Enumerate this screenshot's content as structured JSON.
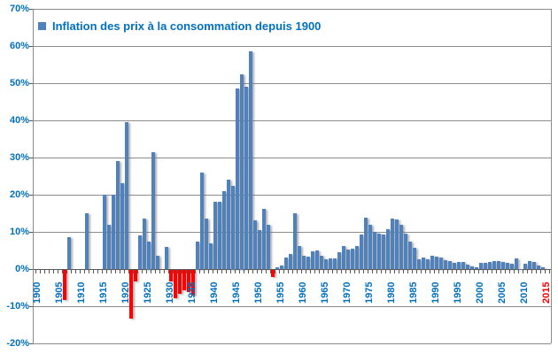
{
  "legend": {
    "label": "Inflation des prix à la consommation depuis 1900",
    "swatch_color": "#4f81bd"
  },
  "colors": {
    "positive_bar": "#4f81bd",
    "negative_bar": "#ff0000",
    "axis_text": "#0070c0",
    "last_xlabel": "#ff0000",
    "gridline": "#8c8c8c"
  },
  "y_axis": {
    "tick_labels": [
      "70%",
      "60%",
      "50%",
      "40%",
      "30%",
      "20%",
      "10%",
      "0%",
      "-10%",
      "-20%"
    ],
    "tick_values": [
      70,
      60,
      50,
      40,
      30,
      20,
      10,
      0,
      -10,
      -20
    ]
  },
  "x_axis": {
    "tick_labels": [
      "1900",
      "1905",
      "1910",
      "1915",
      "1920",
      "1925",
      "1930",
      "1935",
      "1940",
      "1945",
      "1950",
      "1955",
      "1960",
      "1965",
      "1970",
      "1975",
      "1980",
      "1985",
      "1990",
      "1995",
      "2000",
      "2005",
      "2010",
      "2015"
    ],
    "last_label_color": "#ff0000"
  },
  "chart_data": {
    "type": "bar",
    "title": "Inflation des prix à la consommation depuis 1900",
    "xlabel": "",
    "ylabel": "",
    "ylim": [
      -20,
      70
    ],
    "grid": "horizontal-only",
    "legend_position": "top-left-inside",
    "positive_color": "#4f81bd",
    "negative_color": "#ff0000",
    "x_start_year": 1900,
    "x_end_year": 2015,
    "years": [
      1900,
      1901,
      1902,
      1903,
      1904,
      1905,
      1906,
      1907,
      1908,
      1909,
      1910,
      1911,
      1912,
      1913,
      1914,
      1915,
      1916,
      1917,
      1918,
      1919,
      1920,
      1921,
      1922,
      1923,
      1924,
      1925,
      1926,
      1927,
      1928,
      1929,
      1930,
      1931,
      1932,
      1933,
      1934,
      1935,
      1936,
      1937,
      1938,
      1939,
      1940,
      1941,
      1942,
      1943,
      1944,
      1945,
      1946,
      1947,
      1948,
      1949,
      1950,
      1951,
      1952,
      1953,
      1954,
      1955,
      1956,
      1957,
      1958,
      1959,
      1960,
      1961,
      1962,
      1963,
      1964,
      1965,
      1966,
      1967,
      1968,
      1969,
      1970,
      1971,
      1972,
      1973,
      1974,
      1975,
      1976,
      1977,
      1978,
      1979,
      1980,
      1981,
      1982,
      1983,
      1984,
      1985,
      1986,
      1987,
      1988,
      1989,
      1990,
      1991,
      1992,
      1993,
      1994,
      1995,
      1996,
      1997,
      1998,
      1999,
      2000,
      2001,
      2002,
      2003,
      2004,
      2005,
      2006,
      2007,
      2008,
      2009,
      2010,
      2011,
      2012,
      2013,
      2014,
      2015
    ],
    "values": [
      0,
      0,
      0,
      0,
      0,
      0,
      -8,
      8.5,
      0,
      0,
      0,
      15,
      0,
      0,
      0,
      20,
      12,
      20,
      29,
      23,
      39.5,
      -13.2,
      -3,
      9,
      13.5,
      7.5,
      31.5,
      3.5,
      0,
      6,
      -3,
      -7.5,
      -6.5,
      -5.5,
      -6,
      -7,
      7.5,
      26,
      13.5,
      7,
      18,
      18,
      21,
      24,
      22.5,
      48.5,
      52.5,
      49,
      58.5,
      13.2,
      10.5,
      16.3,
      11.8,
      -1.8,
      0.5,
      1,
      3,
      4,
      15.1,
      6.3,
      3.6,
      3.4,
      4.7,
      4.9,
      3.5,
      2.6,
      2.8,
      2.8,
      4.5,
      6.1,
      5.3,
      5.5,
      6.2,
      9.2,
      13.7,
      12,
      9.9,
      9.5,
      9.2,
      10.8,
      13.6,
      13.4,
      11.8,
      9.6,
      7.4,
      5.8,
      2.7,
      3.1,
      2.7,
      3.6,
      3.4,
      3.2,
      2.4,
      2.1,
      1.7,
      1.8,
      2.0,
      1.2,
      0.7,
      0.5,
      1.7,
      1.7,
      1.9,
      2.1,
      2.1,
      1.8,
      1.7,
      1.5,
      2.8,
      0.1,
      1.5,
      2.1,
      2.0,
      0.9,
      0.5,
      0
    ]
  }
}
